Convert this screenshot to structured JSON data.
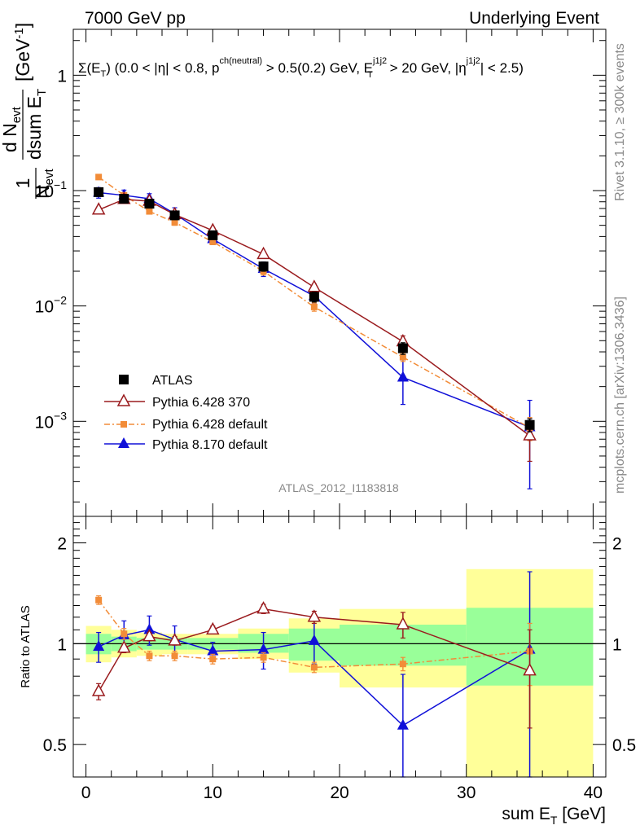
{
  "header": {
    "left": "7000 GeV pp",
    "right": "Underlying Event"
  },
  "side": {
    "rivet": "Rivet 3.1.10, ≥ 300k events",
    "mcplots": "mcplots.cern.ch [arXiv:1306.3436]"
  },
  "chart_data": [
    {
      "type": "scatter",
      "panel": "main",
      "title": "Σ(E_T) (0.0 < |η| < 0.8, p^ch(neutral) > 0.5(0.2) GeV, E_T^j1j2 > 20 GeV, |η^j1j2| < 2.5)",
      "title_parts": {
        "sigma": "Σ(E",
        "sub_T": "T",
        "mid1": ") (0.0 < |η| < 0.8, p",
        "sup_ch": "ch(neutral)",
        "mid2": " > 0.5(0.2) GeV, E",
        "sup_j": "j1j2",
        "sub_T2": "T",
        "mid3": " > 20 GeV, |η",
        "sup_j2": "j1j2",
        "end": "| < 2.5)"
      },
      "ylabel": "1/N_evt dN_evt/dsum E_T [GeV^-1]",
      "ylabel_parts": {
        "one": "1",
        "N": "N",
        "evt": "evt",
        "dN": "d N",
        "dsum": "dsum E",
        "T": "T",
        "unit": "[GeV",
        "exp": "-1",
        "close": "]"
      },
      "yscale": "log",
      "ylim": [
        0.00015,
        2.5
      ],
      "xlim": [
        -1,
        41
      ],
      "ytick_labels": [
        {
          "value": 1,
          "text": "1"
        },
        {
          "value": 0.1,
          "base": "10",
          "exp": "−1"
        },
        {
          "value": 0.01,
          "base": "10",
          "exp": "−2"
        },
        {
          "value": 0.001,
          "base": "10",
          "exp": "−3"
        }
      ],
      "analysis_label": "ATLAS_2012_I1183818",
      "legend_position": "bottom-left",
      "series": [
        {
          "name": "ATLAS",
          "color": "#000000",
          "marker": "square-filled",
          "x": [
            1,
            3,
            5,
            7,
            10,
            14,
            18,
            25,
            35
          ],
          "y": [
            0.097,
            0.085,
            0.077,
            0.061,
            0.041,
            0.022,
            0.012,
            0.0043,
            0.00093
          ],
          "yerr": [
            0.008,
            0.006,
            0.005,
            0.004,
            0.003,
            0.002,
            0.0012,
            0.0005,
            0.00012
          ]
        },
        {
          "name": "Pythia 6.428 370",
          "color": "#9a1b1e",
          "marker": "triangle-open",
          "x": [
            1,
            3,
            5,
            7,
            10,
            14,
            18,
            25,
            35
          ],
          "y": [
            0.068,
            0.084,
            0.081,
            0.062,
            0.045,
            0.028,
            0.0145,
            0.0049,
            0.00075
          ],
          "yerr": [
            0.003,
            0.003,
            0.003,
            0.003,
            0.002,
            0.0015,
            0.001,
            0.0006,
            0.0003
          ]
        },
        {
          "name": "Pythia 6.428 default",
          "color": "#f28c38",
          "marker": "square-small",
          "linestyle": "dash-dot",
          "x": [
            1,
            3,
            5,
            7,
            10,
            14,
            18,
            25,
            35
          ],
          "y": [
            0.131,
            0.091,
            0.066,
            0.053,
            0.036,
            0.02,
            0.0098,
            0.0036,
            0.00088
          ],
          "yerr": [
            0.004,
            0.004,
            0.003,
            0.003,
            0.002,
            0.0015,
            0.0008,
            0.0003,
            0.0002
          ]
        },
        {
          "name": "Pythia 8.170 default",
          "color": "#1010d8",
          "marker": "triangle-filled",
          "x": [
            1,
            3,
            5,
            7,
            10,
            14,
            18,
            25,
            35
          ],
          "y": [
            0.096,
            0.091,
            0.085,
            0.063,
            0.038,
            0.021,
            0.0122,
            0.0024,
            0.00089
          ],
          "yerr": [
            0.01,
            0.01,
            0.009,
            0.008,
            0.004,
            0.003,
            0.0018,
            0.001,
            0.00063
          ]
        }
      ]
    },
    {
      "type": "scatter",
      "panel": "ratio",
      "ylabel": "Ratio to ATLAS",
      "xlabel": "sum E_T [GeV]",
      "xlabel_parts": {
        "main": "sum E",
        "sub": "T",
        "unit": " [GeV]"
      },
      "xlim": [
        -1,
        41
      ],
      "ylim": [
        0.4,
        2.4
      ],
      "yscale": "log",
      "xtick_labels": [
        0,
        10,
        20,
        30,
        40
      ],
      "ytick_labels": [
        0.5,
        1,
        2
      ],
      "bands": [
        {
          "x0": 0,
          "x1": 2,
          "stat_lo": 0.93,
          "stat_hi": 1.07,
          "tot_lo": 0.88,
          "tot_hi": 1.13
        },
        {
          "x0": 2,
          "x1": 4,
          "stat_lo": 0.95,
          "stat_hi": 1.05,
          "tot_lo": 0.91,
          "tot_hi": 1.1
        },
        {
          "x0": 4,
          "x1": 6,
          "stat_lo": 0.96,
          "stat_hi": 1.04,
          "tot_lo": 0.92,
          "tot_hi": 1.08
        },
        {
          "x0": 6,
          "x1": 8,
          "stat_lo": 0.96,
          "stat_hi": 1.04,
          "tot_lo": 0.93,
          "tot_hi": 1.07
        },
        {
          "x0": 8,
          "x1": 12,
          "stat_lo": 0.96,
          "stat_hi": 1.04,
          "tot_lo": 0.93,
          "tot_hi": 1.07
        },
        {
          "x0": 12,
          "x1": 16,
          "stat_lo": 0.94,
          "stat_hi": 1.07,
          "tot_lo": 0.9,
          "tot_hi": 1.11
        },
        {
          "x0": 16,
          "x1": 20,
          "stat_lo": 0.89,
          "stat_hi": 1.11,
          "tot_lo": 0.82,
          "tot_hi": 1.19
        },
        {
          "x0": 20,
          "x1": 30,
          "stat_lo": 0.86,
          "stat_hi": 1.14,
          "tot_lo": 0.74,
          "tot_hi": 1.27
        },
        {
          "x0": 30,
          "x1": 40,
          "stat_lo": 0.75,
          "stat_hi": 1.28,
          "tot_lo": 0.38,
          "tot_hi": 1.67
        }
      ],
      "series": [
        {
          "name": "Pythia 6.428 370",
          "color": "#9a1b1e",
          "marker": "triangle-open",
          "x": [
            1,
            3,
            5,
            7,
            10,
            14,
            18,
            25,
            35
          ],
          "y": [
            0.72,
            0.97,
            1.05,
            1.02,
            1.1,
            1.27,
            1.2,
            1.14,
            0.83
          ],
          "yerr": [
            0.04,
            0.03,
            0.03,
            0.03,
            0.03,
            0.04,
            0.05,
            0.1,
            0.27
          ]
        },
        {
          "name": "Pythia 6.428 default",
          "color": "#f28c38",
          "marker": "square-small",
          "linestyle": "dash-dot",
          "x": [
            1,
            3,
            5,
            7,
            10,
            14,
            18,
            25,
            35
          ],
          "y": [
            1.35,
            1.07,
            0.92,
            0.92,
            0.9,
            0.91,
            0.85,
            0.87,
            0.95
          ],
          "yerr": [
            0.04,
            0.04,
            0.03,
            0.03,
            0.03,
            0.03,
            0.03,
            0.04,
            0.2
          ]
        },
        {
          "name": "Pythia 8.170 default",
          "color": "#1010d8",
          "marker": "triangle-filled",
          "x": [
            1,
            3,
            5,
            7,
            10,
            14,
            18,
            25,
            35
          ],
          "y": [
            0.98,
            1.06,
            1.1,
            1.03,
            0.95,
            0.96,
            1.02,
            0.57,
            0.96
          ],
          "yerr": [
            0.1,
            0.11,
            0.11,
            0.1,
            0.06,
            0.12,
            0.15,
            0.24,
            0.68
          ]
        }
      ]
    }
  ]
}
